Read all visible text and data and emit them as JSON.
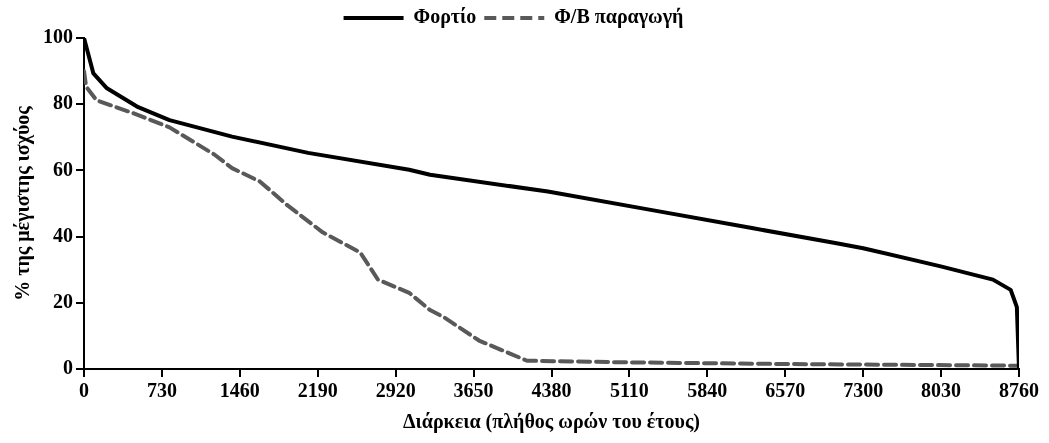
{
  "chart_data": {
    "type": "line",
    "xlabel": "Διάρκεια (πλήθος ωρών του έτους)",
    "ylabel": "% της μέγιστης ισχύος",
    "xlim": [
      0,
      8760
    ],
    "xticks": [
      0,
      730,
      1460,
      2190,
      2920,
      3650,
      4380,
      5110,
      5840,
      6570,
      7300,
      8030,
      8760
    ],
    "ylim": [
      0,
      100
    ],
    "yticks": [
      0,
      20,
      40,
      60,
      80,
      100
    ],
    "grid": false,
    "legend": "top",
    "marker": "none",
    "series": [
      {
        "name": "Φορτίο",
        "color": "#000000",
        "line_style": "solid",
        "x": [
          0,
          88,
          215,
          508,
          801,
          1387,
          2100,
          3047,
          3242,
          4346,
          5322,
          6270,
          7051,
          7300,
          8027,
          8516,
          8682,
          8740,
          8760
        ],
        "values": [
          100,
          89.3,
          84.8,
          79.1,
          75.2,
          70.2,
          65.3,
          60.2,
          58.7,
          53.6,
          48,
          42.5,
          38,
          36.5,
          31,
          27,
          23.9,
          18.7,
          0
        ]
      },
      {
        "name": "Φ/Β παραγωγή",
        "color": "#595959",
        "line_style": "dashed",
        "x": [
          0,
          20,
          117,
          478,
          801,
          1221,
          1387,
          1650,
          1904,
          2236,
          2588,
          2754,
          3047,
          3242,
          3369,
          3701,
          4150,
          5110,
          6570,
          8760
        ],
        "values": [
          90,
          85.3,
          81.2,
          77.1,
          73,
          64.8,
          60.7,
          56.6,
          49.5,
          41.3,
          35.2,
          27,
          23,
          17.8,
          15.7,
          8.6,
          2.5,
          2,
          1.5,
          1
        ]
      }
    ]
  }
}
